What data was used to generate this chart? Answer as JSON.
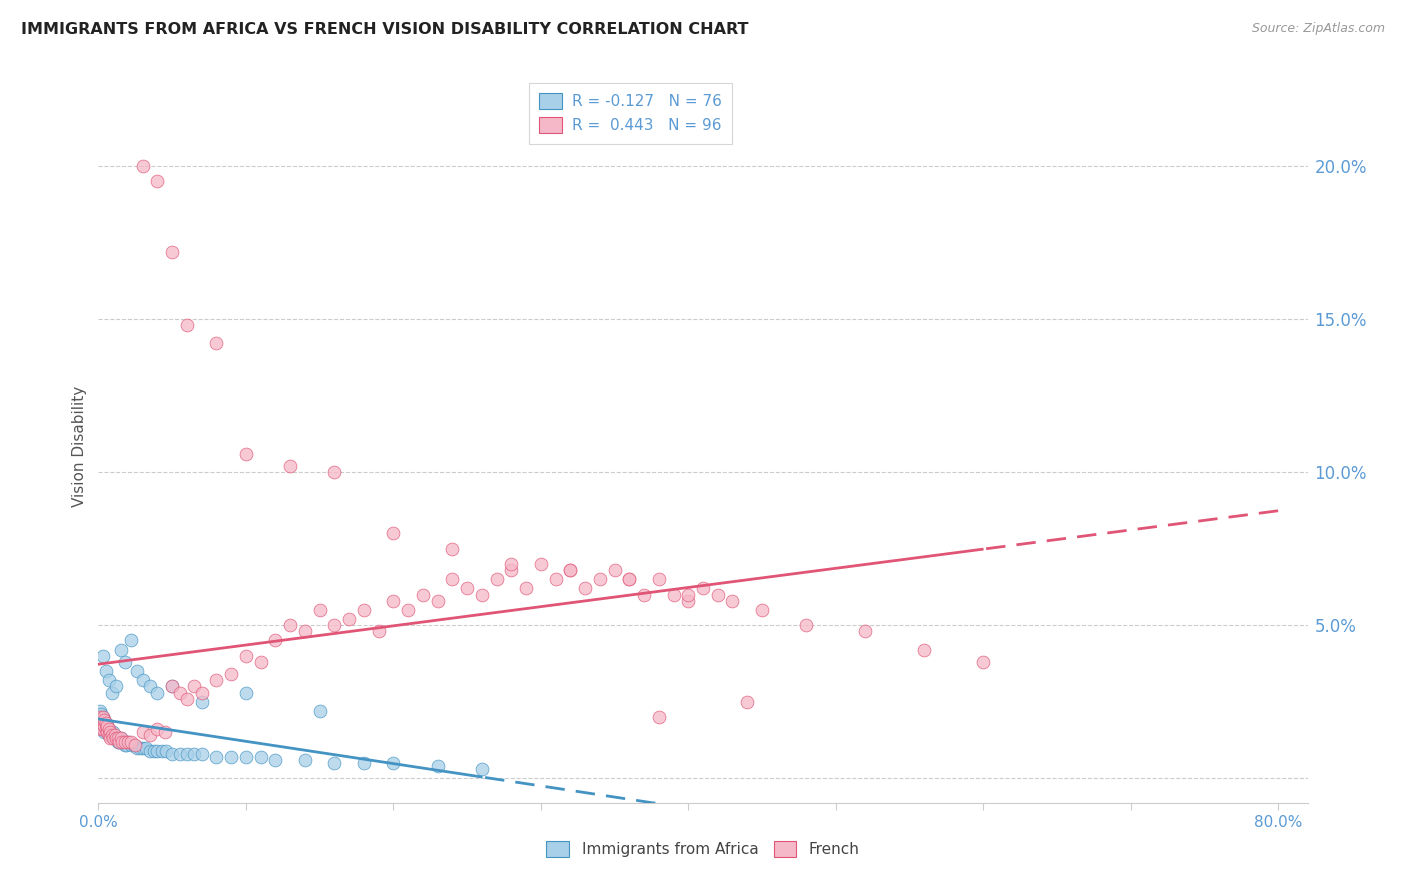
{
  "title": "IMMIGRANTS FROM AFRICA VS FRENCH VISION DISABILITY CORRELATION CHART",
  "source": "Source: ZipAtlas.com",
  "ylabel": "Vision Disability",
  "xlim": [
    0.0,
    0.82
  ],
  "ylim": [
    -0.008,
    0.225
  ],
  "ytick_values": [
    0.0,
    0.05,
    0.1,
    0.15,
    0.2
  ],
  "ytick_labels": [
    "",
    "5.0%",
    "10.0%",
    "15.0%",
    "20.0%"
  ],
  "xtick_values": [
    0.0,
    0.1,
    0.2,
    0.3,
    0.4,
    0.5,
    0.6,
    0.7,
    0.8
  ],
  "xtick_labels": [
    "0.0%",
    "",
    "",
    "",
    "",
    "",
    "",
    "",
    "80.0%"
  ],
  "legend_blue_label": "Immigrants from Africa",
  "legend_pink_label": "French",
  "blue_color": "#A8D0E8",
  "pink_color": "#F5B8C8",
  "line_blue_color": "#4393C3",
  "line_pink_color": "#E05575",
  "axis_label_color": "#5B9BD5",
  "title_color": "#222222",
  "source_color": "#999999",
  "grid_color": "#CCCCCC",
  "blue_R": "-0.127",
  "blue_N": "76",
  "pink_R": "0.443",
  "pink_N": "96",
  "blue_x": [
    0.001,
    0.001,
    0.001,
    0.002,
    0.002,
    0.002,
    0.003,
    0.003,
    0.003,
    0.004,
    0.004,
    0.004,
    0.005,
    0.005,
    0.006,
    0.006,
    0.007,
    0.007,
    0.008,
    0.008,
    0.009,
    0.01,
    0.01,
    0.011,
    0.012,
    0.013,
    0.014,
    0.015,
    0.016,
    0.017,
    0.018,
    0.019,
    0.02,
    0.022,
    0.024,
    0.026,
    0.028,
    0.03,
    0.032,
    0.035,
    0.038,
    0.04,
    0.043,
    0.046,
    0.05,
    0.055,
    0.06,
    0.065,
    0.07,
    0.08,
    0.09,
    0.1,
    0.11,
    0.12,
    0.14,
    0.16,
    0.18,
    0.2,
    0.23,
    0.26,
    0.003,
    0.005,
    0.007,
    0.009,
    0.012,
    0.015,
    0.018,
    0.022,
    0.026,
    0.03,
    0.035,
    0.04,
    0.05,
    0.07,
    0.1,
    0.15
  ],
  "blue_y": [
    0.02,
    0.022,
    0.018,
    0.019,
    0.021,
    0.017,
    0.02,
    0.018,
    0.016,
    0.019,
    0.017,
    0.015,
    0.018,
    0.016,
    0.017,
    0.015,
    0.016,
    0.014,
    0.015,
    0.014,
    0.014,
    0.013,
    0.015,
    0.013,
    0.013,
    0.012,
    0.012,
    0.013,
    0.012,
    0.012,
    0.011,
    0.011,
    0.012,
    0.011,
    0.011,
    0.01,
    0.01,
    0.01,
    0.01,
    0.009,
    0.009,
    0.009,
    0.009,
    0.009,
    0.008,
    0.008,
    0.008,
    0.008,
    0.008,
    0.007,
    0.007,
    0.007,
    0.007,
    0.006,
    0.006,
    0.005,
    0.005,
    0.005,
    0.004,
    0.003,
    0.04,
    0.035,
    0.032,
    0.028,
    0.03,
    0.042,
    0.038,
    0.045,
    0.035,
    0.032,
    0.03,
    0.028,
    0.03,
    0.025,
    0.028,
    0.022
  ],
  "pink_x": [
    0.001,
    0.001,
    0.002,
    0.002,
    0.002,
    0.003,
    0.003,
    0.003,
    0.004,
    0.004,
    0.005,
    0.005,
    0.006,
    0.006,
    0.007,
    0.007,
    0.008,
    0.008,
    0.009,
    0.01,
    0.011,
    0.012,
    0.013,
    0.014,
    0.015,
    0.016,
    0.018,
    0.02,
    0.022,
    0.025,
    0.03,
    0.035,
    0.04,
    0.045,
    0.05,
    0.055,
    0.06,
    0.065,
    0.07,
    0.08,
    0.09,
    0.1,
    0.11,
    0.12,
    0.13,
    0.14,
    0.15,
    0.16,
    0.17,
    0.18,
    0.19,
    0.2,
    0.21,
    0.22,
    0.23,
    0.24,
    0.25,
    0.26,
    0.27,
    0.28,
    0.29,
    0.3,
    0.31,
    0.32,
    0.33,
    0.34,
    0.35,
    0.36,
    0.37,
    0.38,
    0.39,
    0.4,
    0.41,
    0.42,
    0.43,
    0.45,
    0.48,
    0.52,
    0.56,
    0.6,
    0.03,
    0.04,
    0.05,
    0.06,
    0.08,
    0.1,
    0.13,
    0.16,
    0.2,
    0.24,
    0.28,
    0.32,
    0.36,
    0.4,
    0.44,
    0.38
  ],
  "pink_y": [
    0.018,
    0.02,
    0.016,
    0.019,
    0.017,
    0.018,
    0.016,
    0.02,
    0.017,
    0.019,
    0.016,
    0.018,
    0.015,
    0.017,
    0.016,
    0.014,
    0.015,
    0.013,
    0.014,
    0.013,
    0.014,
    0.013,
    0.013,
    0.012,
    0.013,
    0.012,
    0.012,
    0.012,
    0.012,
    0.011,
    0.015,
    0.014,
    0.016,
    0.015,
    0.03,
    0.028,
    0.026,
    0.03,
    0.028,
    0.032,
    0.034,
    0.04,
    0.038,
    0.045,
    0.05,
    0.048,
    0.055,
    0.05,
    0.052,
    0.055,
    0.048,
    0.058,
    0.055,
    0.06,
    0.058,
    0.065,
    0.062,
    0.06,
    0.065,
    0.068,
    0.062,
    0.07,
    0.065,
    0.068,
    0.062,
    0.065,
    0.068,
    0.065,
    0.06,
    0.065,
    0.06,
    0.058,
    0.062,
    0.06,
    0.058,
    0.055,
    0.05,
    0.048,
    0.042,
    0.038,
    0.2,
    0.195,
    0.172,
    0.148,
    0.142,
    0.106,
    0.102,
    0.1,
    0.08,
    0.075,
    0.07,
    0.068,
    0.065,
    0.06,
    0.025,
    0.02
  ]
}
